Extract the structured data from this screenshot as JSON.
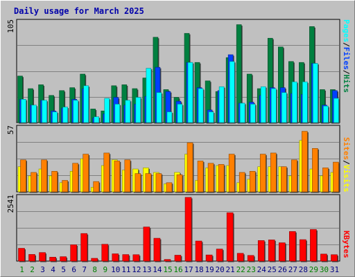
{
  "title": "Daily usage for March 2025",
  "colors": {
    "hits": "#008040",
    "files": "#0040ff",
    "pages": "#00ffff",
    "visits": "#ffff00",
    "sites": "#ff8000",
    "kbytes": "#ff0000",
    "weekend_label": "#008000",
    "weekday_label": "#000080",
    "panel_bg": "#c0c0c0"
  },
  "chart_data": [
    {
      "type": "bar",
      "panel": "usage",
      "ymax_label": "105",
      "ylim": [
        0,
        105
      ],
      "legend_right": [
        "Pages",
        "/",
        "Files",
        "/",
        "Hits"
      ],
      "categories": [
        "1",
        "2",
        "3",
        "4",
        "5",
        "6",
        "7",
        "8",
        "9",
        "10",
        "11",
        "12",
        "13",
        "14",
        "15",
        "16",
        "17",
        "18",
        "19",
        "20",
        "21",
        "22",
        "23",
        "24",
        "25",
        "26",
        "27",
        "28",
        "29",
        "30",
        "31"
      ],
      "series": [
        {
          "name": "Hits",
          "values": [
            48,
            35,
            39,
            28,
            33,
            36,
            50,
            14,
            12,
            38,
            39,
            35,
            46,
            88,
            34,
            26,
            92,
            62,
            43,
            32,
            67,
            101,
            50,
            35,
            87,
            78,
            63,
            62,
            99,
            34,
            34
          ]
        },
        {
          "name": "Files",
          "values": [
            24,
            18,
            23,
            12,
            15,
            24,
            35,
            5,
            9,
            26,
            18,
            19,
            27,
            57,
            32,
            22,
            62,
            36,
            13,
            33,
            70,
            20,
            21,
            28,
            36,
            36,
            30,
            29,
            61,
            18,
            33
          ]
        },
        {
          "name": "Pages",
          "values": [
            24,
            18,
            23,
            11,
            16,
            23,
            38,
            6,
            25,
            19,
            23,
            26,
            56,
            31,
            11,
            19,
            62,
            35,
            11,
            37,
            63,
            20,
            19,
            37,
            35,
            31,
            42,
            42,
            61,
            17,
            25
          ]
        }
      ]
    },
    {
      "type": "bar",
      "panel": "visitors",
      "ymax_label": "57",
      "ylim": [
        0,
        57
      ],
      "legend_right": [
        "Sites",
        "/",
        "Visits"
      ],
      "categories": [
        "1",
        "2",
        "3",
        "4",
        "5",
        "6",
        "7",
        "8",
        "9",
        "10",
        "11",
        "12",
        "13",
        "14",
        "15",
        "16",
        "17",
        "18",
        "19",
        "20",
        "21",
        "22",
        "23",
        "24",
        "25",
        "26",
        "27",
        "28",
        "29",
        "30",
        "31"
      ],
      "series": [
        {
          "name": "Visits",
          "values": [
            22,
            14,
            20,
            14,
            8,
            18,
            29,
            4,
            23,
            28,
            19,
            20,
            21,
            17,
            7,
            17,
            33,
            10,
            21,
            23,
            23,
            8,
            11,
            22,
            22,
            22,
            14,
            45,
            20,
            14,
            17
          ]
        },
        {
          "name": "Sites",
          "values": [
            28,
            17,
            28,
            18,
            10,
            25,
            33,
            9,
            34,
            27,
            28,
            16,
            16,
            16,
            8,
            15,
            43,
            27,
            25,
            24,
            33,
            17,
            18,
            33,
            34,
            22,
            28,
            53,
            38,
            21,
            26
          ]
        }
      ]
    },
    {
      "type": "bar",
      "panel": "kbytes",
      "ymax_label": "2541",
      "ylim": [
        0,
        2541
      ],
      "legend_right": [
        "KBytes"
      ],
      "categories": [
        "1",
        "2",
        "3",
        "4",
        "5",
        "6",
        "7",
        "8",
        "9",
        "10",
        "11",
        "12",
        "13",
        "14",
        "15",
        "16",
        "17",
        "18",
        "19",
        "20",
        "21",
        "22",
        "23",
        "24",
        "25",
        "26",
        "27",
        "28",
        "29",
        "30",
        "31"
      ],
      "series": [
        {
          "name": "KBytes",
          "values": [
            510,
            265,
            340,
            155,
            175,
            650,
            1100,
            110,
            670,
            290,
            260,
            255,
            1360,
            910,
            65,
            235,
            2541,
            800,
            245,
            480,
            1930,
            310,
            225,
            820,
            845,
            730,
            1180,
            855,
            1260,
            280,
            255
          ]
        }
      ]
    }
  ],
  "x_labels": {
    "days": [
      "1",
      "2",
      "3",
      "4",
      "5",
      "6",
      "7",
      "8",
      "9",
      "10",
      "11",
      "12",
      "13",
      "14",
      "15",
      "16",
      "17",
      "18",
      "19",
      "20",
      "21",
      "22",
      "23",
      "24",
      "25",
      "26",
      "27",
      "28",
      "29",
      "30",
      "31"
    ],
    "weekend_days": [
      "1",
      "2",
      "8",
      "9",
      "15",
      "16",
      "22",
      "23",
      "29",
      "30"
    ]
  }
}
